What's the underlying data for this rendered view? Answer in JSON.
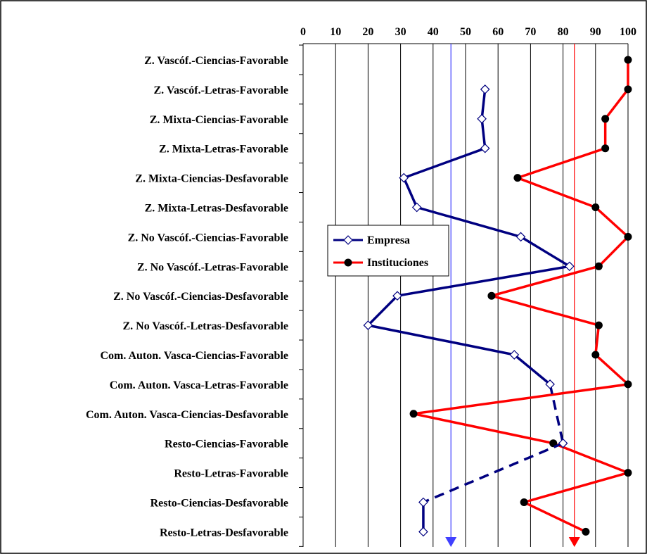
{
  "chart_data": {
    "type": "line",
    "orientation": "horizontal",
    "x_axis": {
      "position": "top",
      "range": [
        0,
        100
      ],
      "ticks": [
        0,
        10,
        20,
        30,
        40,
        50,
        60,
        70,
        80,
        90,
        100
      ]
    },
    "grid": true,
    "legend_position": "center-left",
    "categories": [
      "Z. Vascóf.-Ciencias-Favorable",
      "Z. Vascóf.-Letras-Favorable",
      "Z. Mixta-Ciencias-Favorable",
      "Z. Mixta-Letras-Favorable",
      "Z. Mixta-Ciencias-Desfavorable",
      "Z. Mixta-Letras-Desfavorable",
      "Z. No Vascóf.-Ciencias-Favorable",
      "Z. No Vascóf.-Letras-Favorable",
      "Z. No Vascóf.-Ciencias-Desfavorable",
      "Z. No Vascóf.-Letras-Desfavorable",
      "Com. Auton. Vasca-Ciencias-Favorable",
      "Com. Auton. Vasca-Letras-Favorable",
      "Com. Auton. Vasca-Ciencias-Desfavorable",
      "Resto-Ciencias-Favorable",
      "Resto-Letras-Favorable",
      "Resto-Ciencias-Desfavorable",
      "Resto-Letras-Desfavorable"
    ],
    "series": [
      {
        "name": "Empresa",
        "color": "#000080",
        "marker": "diamond-open",
        "values": [
          null,
          56,
          55,
          56,
          31,
          35,
          67,
          82,
          29,
          20,
          65,
          76,
          null,
          80,
          null,
          37,
          37
        ],
        "dashed_segments": [
          [
            11,
            13
          ],
          [
            13,
            15
          ]
        ]
      },
      {
        "name": "Instituciones",
        "color": "#ff0000",
        "marker": "circle-filled",
        "values": [
          100,
          100,
          93,
          93,
          66,
          90,
          100,
          91,
          58,
          91,
          90,
          100,
          34,
          77,
          100,
          68,
          87
        ]
      }
    ],
    "reference_lines": [
      {
        "x": 45.5,
        "color": "#4040ff"
      },
      {
        "x": 83.5,
        "color": "#ff0000"
      }
    ]
  }
}
